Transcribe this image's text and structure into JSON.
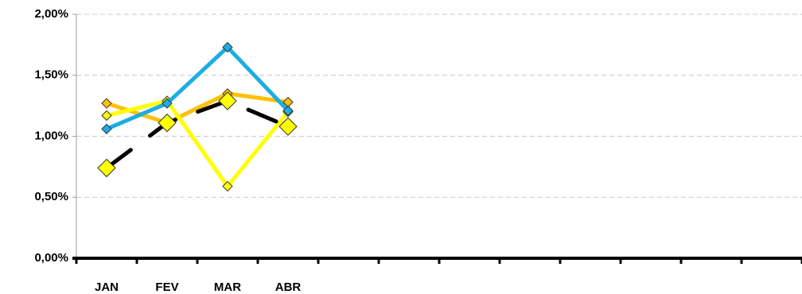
{
  "chart_data": {
    "type": "line",
    "categories": [
      "JAN",
      "FEV",
      "MAR",
      "ABR",
      null,
      null,
      null,
      null,
      null,
      null,
      null,
      null
    ],
    "series": [
      {
        "color": "#FFC000",
        "values": [
          1.27,
          1.11,
          1.35,
          1.28,
          null,
          null,
          null,
          null,
          null,
          null,
          null,
          null
        ]
      },
      {
        "color": "#FFFF00",
        "values": [
          1.17,
          1.29,
          0.59,
          1.2,
          null,
          null,
          null,
          null,
          null,
          null,
          null,
          null
        ]
      },
      {
        "color": "#1CADE4",
        "values": [
          1.06,
          1.27,
          1.73,
          1.21,
          null,
          null,
          null,
          null,
          null,
          null,
          null,
          null
        ]
      },
      {
        "color": "#000000",
        "marker_color": "#FFFF00",
        "dashed": true,
        "values": [
          0.74,
          1.11,
          1.29,
          1.08,
          null,
          null,
          null,
          null,
          null,
          null,
          null,
          null
        ]
      }
    ],
    "ylim": [
      0,
      2
    ],
    "yticks": [
      {
        "value": 0,
        "label": "0,00%"
      },
      {
        "value": 0.5,
        "label": "0,50%"
      },
      {
        "value": 1,
        "label": "1,00%"
      },
      {
        "value": 1.5,
        "label": "1,50%"
      },
      {
        "value": 2,
        "label": "2,00%"
      }
    ],
    "grid": true
  }
}
